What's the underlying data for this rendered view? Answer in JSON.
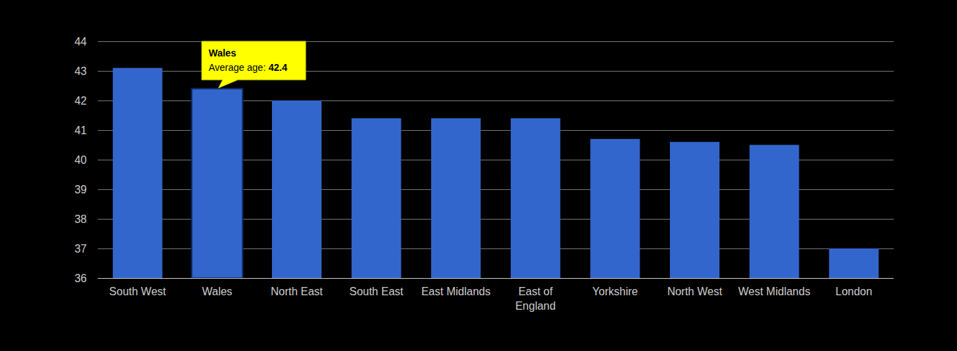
{
  "chart_data": {
    "type": "bar",
    "categories": [
      "South West",
      "Wales",
      "North East",
      "South East",
      "East Midlands",
      "East of England",
      "Yorkshire",
      "North West",
      "West Midlands",
      "London"
    ],
    "values": [
      43.1,
      42.4,
      42.0,
      41.4,
      41.4,
      41.4,
      40.7,
      40.6,
      40.5,
      37.0
    ],
    "color": "#3366cc",
    "ylim": [
      36,
      44
    ],
    "yticks": [
      36,
      37,
      38,
      39,
      40,
      41,
      42,
      43,
      44
    ],
    "grid": true,
    "annotations": [
      {
        "title": "Wales",
        "label": "Average age:"
      }
    ]
  }
}
